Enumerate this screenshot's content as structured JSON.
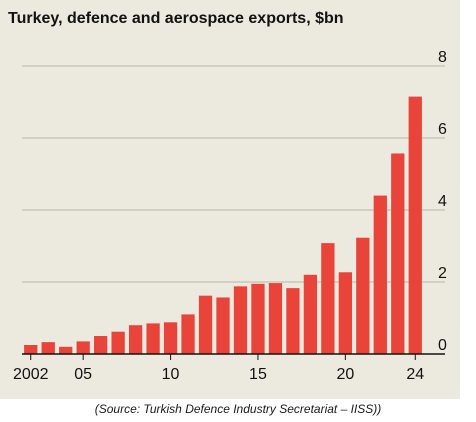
{
  "chart_data": {
    "type": "bar",
    "title": "Turkey, defence and aerospace exports, $bn",
    "x": [
      2002,
      2003,
      2004,
      2005,
      2006,
      2007,
      2008,
      2009,
      2010,
      2011,
      2012,
      2013,
      2014,
      2015,
      2016,
      2017,
      2018,
      2019,
      2020,
      2021,
      2022,
      2023,
      2024
    ],
    "x_tick_labels": [
      {
        "x": 2002,
        "label": "2002"
      },
      {
        "x": 2005,
        "label": "05"
      },
      {
        "x": 2010,
        "label": "10"
      },
      {
        "x": 2015,
        "label": "15"
      },
      {
        "x": 2020,
        "label": "20"
      },
      {
        "x": 2024,
        "label": "24"
      }
    ],
    "values": [
      0.25,
      0.33,
      0.2,
      0.35,
      0.5,
      0.62,
      0.8,
      0.85,
      0.88,
      1.1,
      1.62,
      1.57,
      1.88,
      1.95,
      1.97,
      1.83,
      2.2,
      3.08,
      2.27,
      3.23,
      4.4,
      5.57,
      7.15
    ],
    "ylim": [
      0,
      8
    ],
    "y_ticks": [
      0,
      2,
      4,
      6,
      8
    ],
    "y_axis_position": "right",
    "grid": true,
    "colors": {
      "bar": "#e8443a",
      "background": "#ece9df",
      "grid": "#b9b6ad",
      "baseline": "#121212"
    },
    "source": "(Source: Turkish Defence Industry Secretariat – IISS))"
  }
}
